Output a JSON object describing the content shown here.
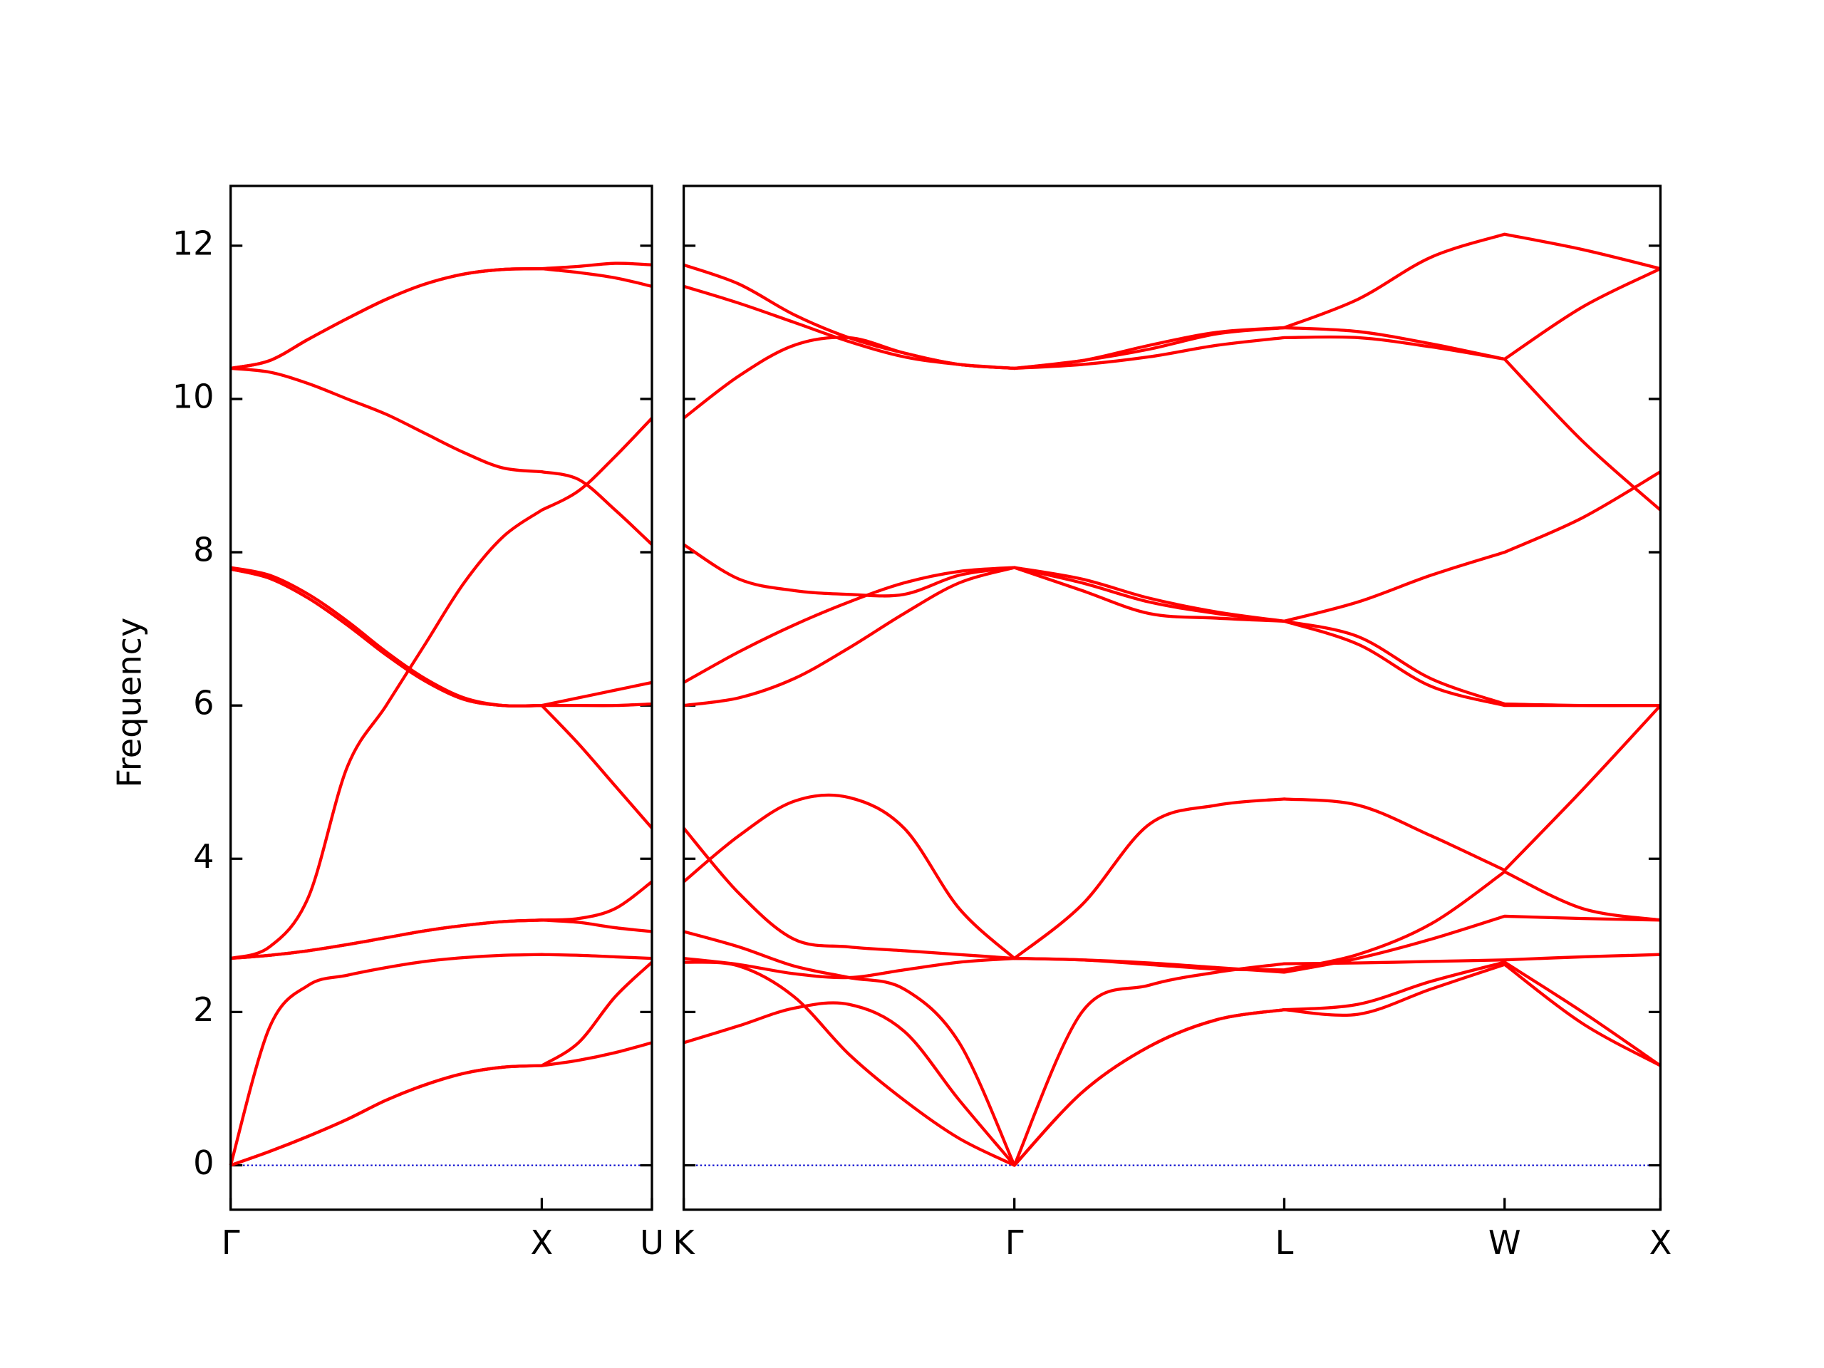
{
  "chart_data": [
    {
      "type": "line",
      "y_label": "Frequency",
      "color": "#ff0000",
      "hline": 0,
      "hline_color": "#0000cc",
      "xlim": [
        0,
        1.354
      ],
      "ylim": [
        -0.58,
        12.78
      ],
      "xticks": [
        {
          "value": 0,
          "label": "Γ"
        },
        {
          "value": 1,
          "label": "X"
        },
        {
          "value": 1.354,
          "label": "U"
        }
      ],
      "yticks": [
        0,
        2,
        4,
        6,
        8,
        10,
        12
      ],
      "x": [
        0,
        0.125,
        0.25,
        0.375,
        0.5,
        0.625,
        0.75,
        0.875,
        1,
        1.118,
        1.236,
        1.354
      ],
      "series": [
        {
          "values": [
            0,
            0.18,
            0.38,
            0.6,
            0.85,
            1.05,
            1.2,
            1.28,
            1.3,
            1.37,
            1.47,
            1.6
          ]
        },
        {
          "values": [
            0,
            0.18,
            0.38,
            0.6,
            0.85,
            1.05,
            1.2,
            1.28,
            1.3,
            1.6,
            2.2,
            2.65
          ]
        },
        {
          "values": [
            0,
            1.8,
            2.35,
            2.48,
            2.58,
            2.66,
            2.71,
            2.74,
            2.75,
            2.74,
            2.72,
            2.7
          ]
        },
        {
          "values": [
            2.7,
            2.74,
            2.8,
            2.88,
            2.97,
            3.06,
            3.13,
            3.18,
            3.2,
            3.22,
            3.35,
            3.7
          ]
        },
        {
          "values": [
            2.7,
            2.85,
            3.5,
            5.2,
            6.0,
            6.8,
            7.6,
            8.2,
            8.55,
            8.8,
            9.25,
            9.75
          ]
        },
        {
          "values": [
            2.7,
            2.74,
            2.8,
            2.88,
            2.97,
            3.06,
            3.13,
            3.18,
            3.2,
            3.17,
            3.1,
            3.05
          ]
        },
        {
          "values": [
            7.8,
            7.7,
            7.45,
            7.1,
            6.7,
            6.35,
            6.1,
            6.0,
            6.0,
            6.1,
            6.2,
            6.3
          ]
        },
        {
          "values": [
            7.78,
            7.66,
            7.4,
            7.05,
            6.66,
            6.32,
            6.08,
            6.0,
            6.0,
            6.0,
            6.0,
            6.02
          ]
        },
        {
          "values": [
            7.78,
            7.66,
            7.4,
            7.05,
            6.66,
            6.32,
            6.08,
            6.0,
            6.0,
            5.5,
            4.95,
            4.4
          ]
        },
        {
          "values": [
            10.4,
            10.35,
            10.2,
            10.0,
            9.8,
            9.55,
            9.3,
            9.1,
            9.05,
            8.95,
            8.55,
            8.1
          ]
        },
        {
          "values": [
            10.4,
            10.5,
            10.78,
            11.05,
            11.3,
            11.5,
            11.63,
            11.69,
            11.7,
            11.73,
            11.77,
            11.75
          ]
        },
        {
          "values": [
            10.4,
            10.5,
            10.78,
            11.05,
            11.3,
            11.5,
            11.63,
            11.69,
            11.7,
            11.65,
            11.58,
            11.47
          ]
        }
      ]
    },
    {
      "type": "line",
      "color": "#ff0000",
      "hline": 0,
      "hline_color": "#0000cc",
      "xlim": [
        0,
        3.134
      ],
      "xticks": [
        {
          "value": 0,
          "label": "K"
        },
        {
          "value": 1.061,
          "label": "Γ"
        },
        {
          "value": 1.927,
          "label": "L"
        },
        {
          "value": 2.634,
          "label": "W"
        },
        {
          "value": 3.134,
          "label": "X"
        }
      ],
      "x": [
        0,
        0.177,
        0.354,
        0.53,
        0.707,
        0.884,
        1.061,
        1.278,
        1.494,
        1.711,
        1.927,
        2.163,
        2.398,
        2.634,
        2.884,
        3.134
      ],
      "series": [
        {
          "values": [
            1.6,
            1.82,
            2.05,
            2.1,
            1.75,
            0.85,
            0,
            0.95,
            1.55,
            1.9,
            2.03,
            1.97,
            2.3,
            2.62,
            1.85,
            1.3
          ]
        },
        {
          "values": [
            2.65,
            2.6,
            2.2,
            1.45,
            0.85,
            0.35,
            0,
            0.95,
            1.55,
            1.9,
            2.03,
            2.1,
            2.4,
            2.65,
            2.0,
            1.3
          ]
        },
        {
          "values": [
            3.05,
            2.85,
            2.6,
            2.45,
            2.3,
            1.6,
            0,
            2.0,
            2.35,
            2.52,
            2.63,
            2.64,
            2.66,
            2.68,
            2.72,
            2.75
          ]
        },
        {
          "values": [
            2.7,
            2.62,
            2.5,
            2.45,
            2.55,
            2.65,
            2.7,
            2.68,
            2.64,
            2.58,
            2.52,
            2.7,
            2.95,
            3.25,
            3.22,
            3.2
          ]
        },
        {
          "values": [
            3.7,
            4.3,
            4.75,
            4.8,
            4.4,
            3.35,
            2.7,
            3.4,
            4.45,
            4.7,
            4.78,
            4.7,
            4.3,
            3.85,
            4.9,
            6.0
          ]
        },
        {
          "values": [
            4.4,
            3.55,
            2.95,
            2.85,
            2.8,
            2.75,
            2.7,
            2.68,
            2.62,
            2.56,
            2.55,
            2.75,
            3.15,
            3.83,
            3.35,
            3.2
          ]
        },
        {
          "values": [
            6.0,
            6.1,
            6.35,
            6.75,
            7.2,
            7.6,
            7.8,
            7.5,
            7.2,
            7.14,
            7.1,
            6.8,
            6.25,
            6.0,
            6.0,
            6.0
          ]
        },
        {
          "values": [
            6.3,
            6.7,
            7.05,
            7.35,
            7.6,
            7.75,
            7.8,
            7.6,
            7.35,
            7.2,
            7.1,
            6.9,
            6.35,
            6.02,
            6.0,
            6.0
          ]
        },
        {
          "values": [
            8.1,
            7.65,
            7.5,
            7.45,
            7.45,
            7.7,
            7.8,
            7.65,
            7.4,
            7.22,
            7.1,
            7.35,
            7.7,
            8.0,
            8.45,
            9.05
          ]
        },
        {
          "values": [
            9.75,
            10.3,
            10.7,
            10.8,
            10.6,
            10.45,
            10.4,
            10.45,
            10.55,
            10.7,
            10.8,
            10.8,
            10.68,
            10.52,
            9.45,
            8.55
          ]
        },
        {
          "values": [
            11.47,
            11.25,
            11.0,
            10.75,
            10.55,
            10.45,
            10.4,
            10.5,
            10.65,
            10.85,
            10.93,
            10.88,
            10.72,
            10.52,
            11.2,
            11.7
          ]
        },
        {
          "values": [
            11.75,
            11.5,
            11.1,
            10.8,
            10.6,
            10.45,
            10.4,
            10.5,
            10.7,
            10.87,
            10.93,
            11.3,
            11.85,
            12.15,
            11.95,
            11.7
          ]
        }
      ]
    }
  ]
}
